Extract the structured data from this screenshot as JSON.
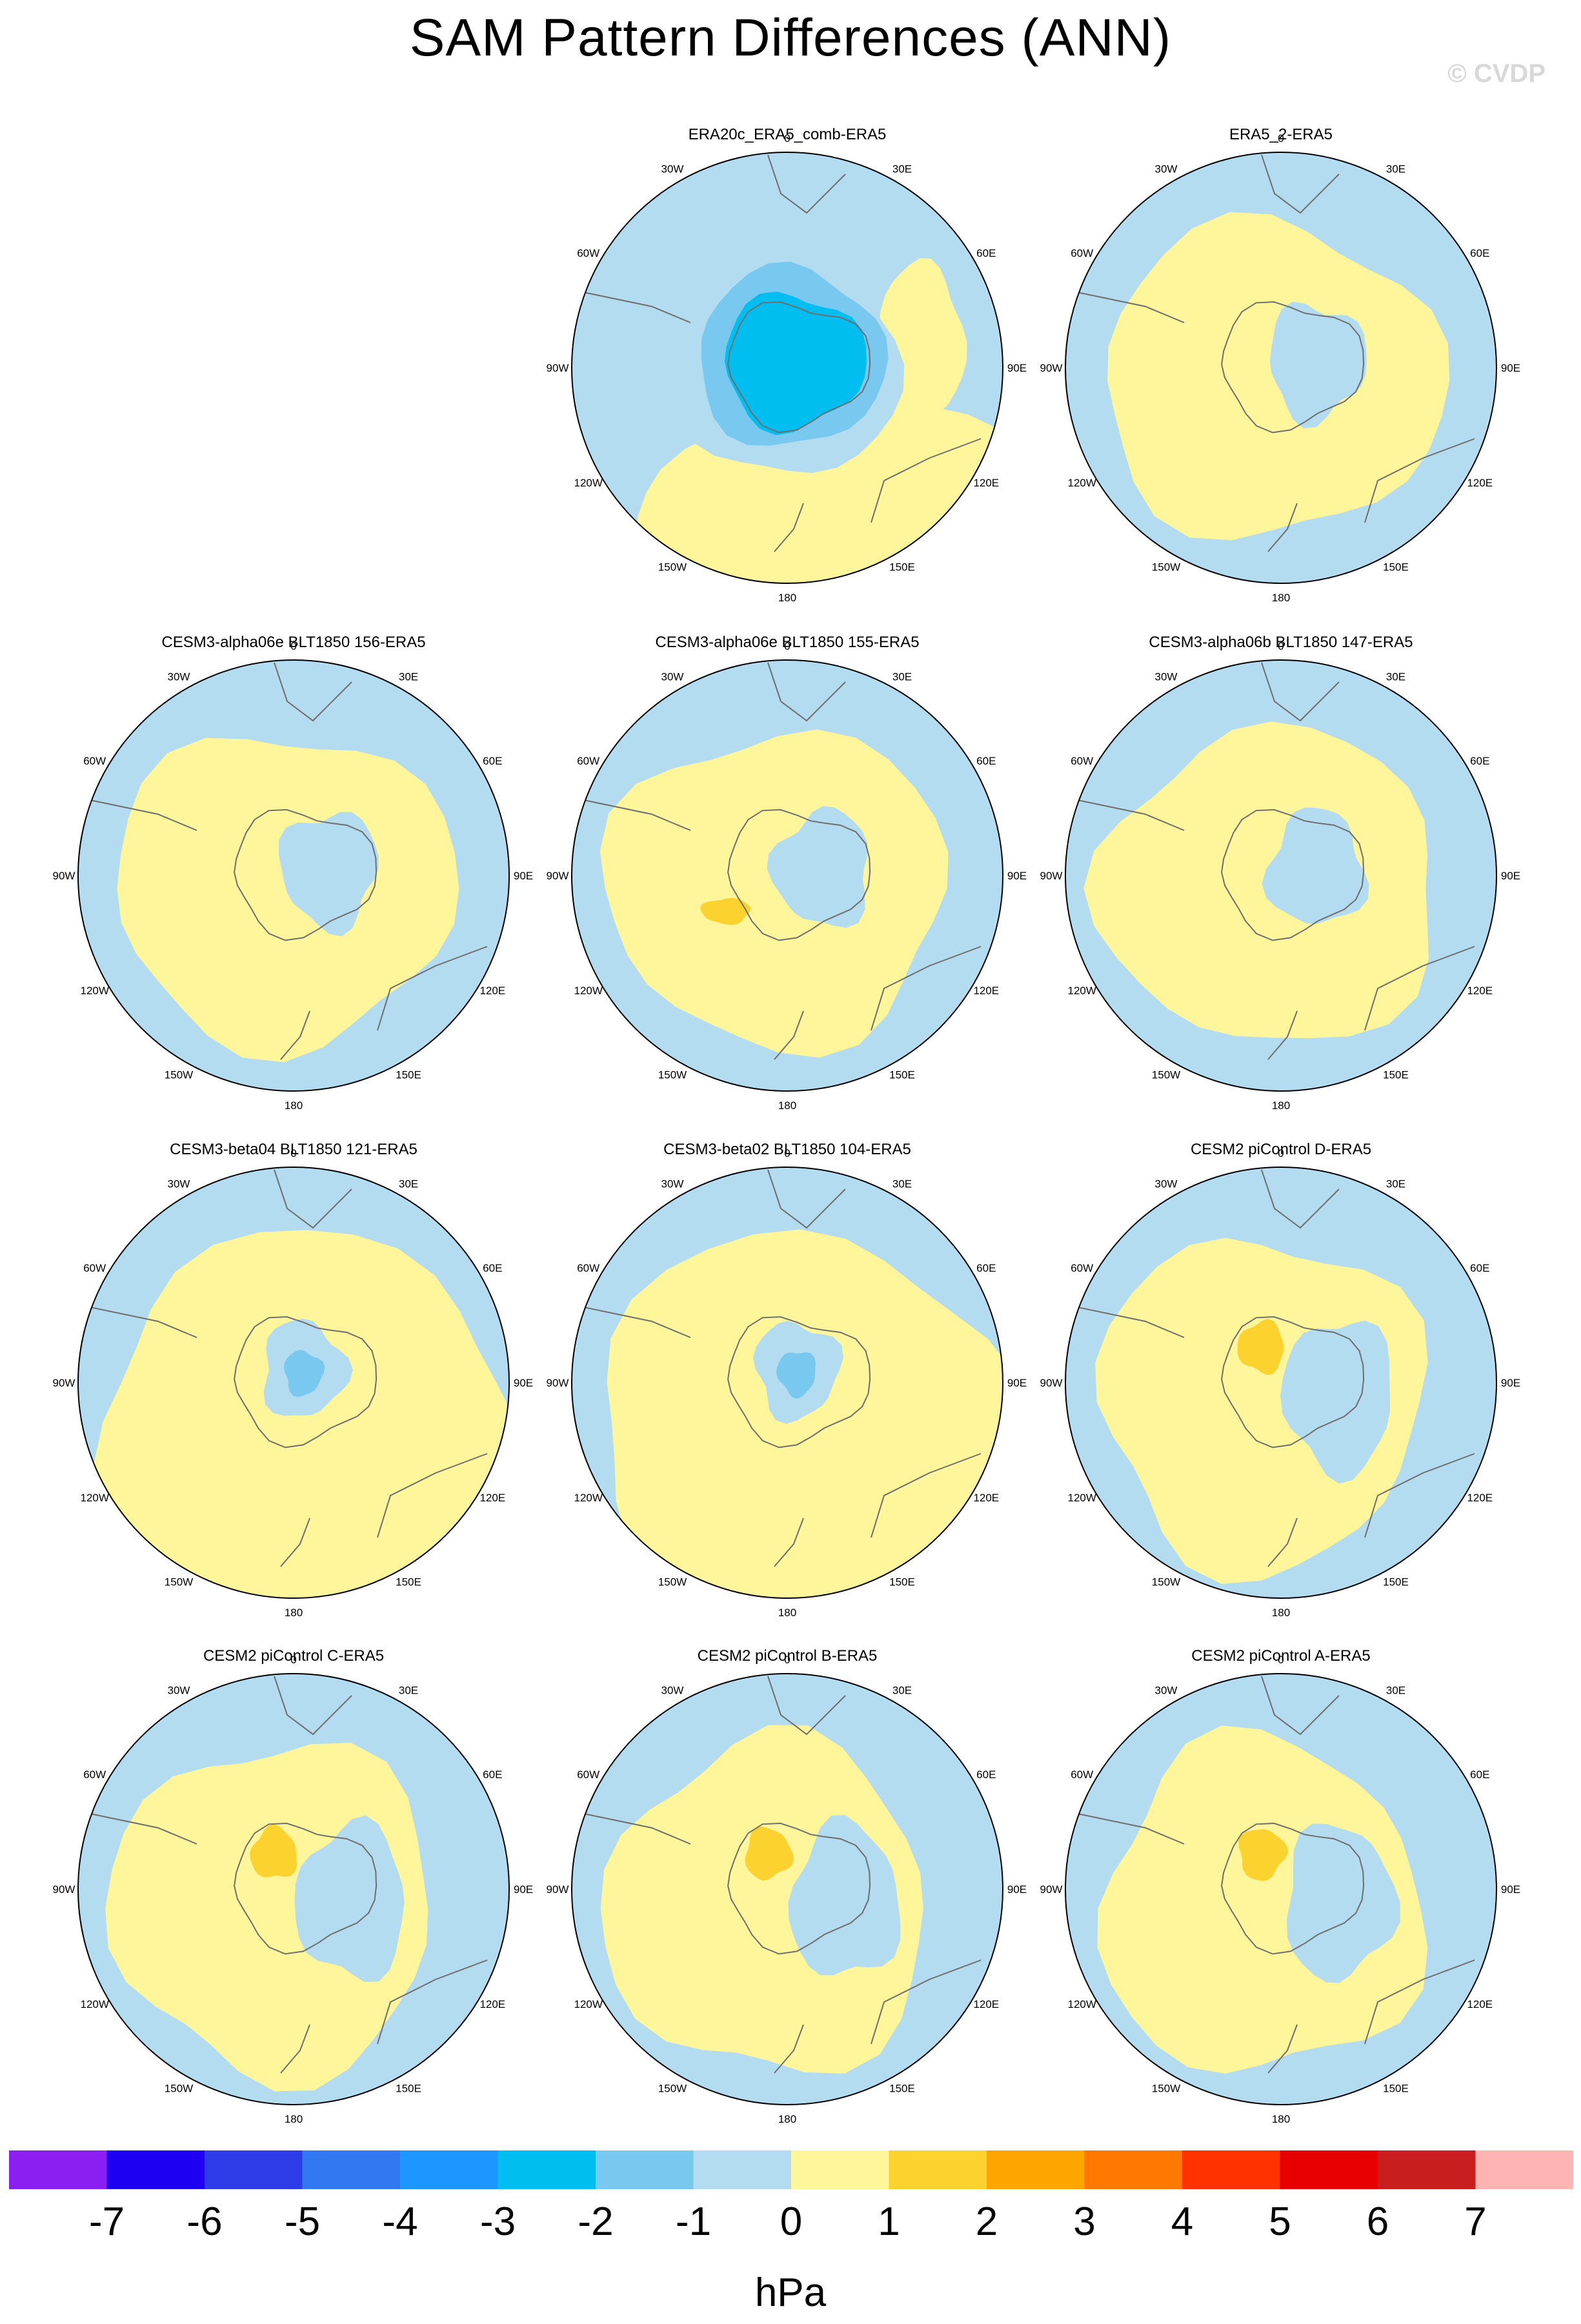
{
  "title": "SAM Pattern Differences (ANN)",
  "watermark": "© CVDP",
  "colors": {
    "ocean_neg1": "#b4dcf0",
    "neg2": "#78c8f0",
    "neg3": "#00bef0",
    "pos1": "#fff59b",
    "pos2": "#fcd22e",
    "coast": "#6e6e6e"
  },
  "lon_labels": [
    "0",
    "30E",
    "60E",
    "90E",
    "120E",
    "150E",
    "180",
    "150W",
    "120W",
    "90W",
    "60W",
    "30W"
  ],
  "panels": [
    {
      "title": "ERA20c_ERA5_comb-ERA5",
      "pattern": "deep-negative-pole"
    },
    {
      "title": "ERA5_2-ERA5",
      "pattern": "positive-ring"
    },
    {
      "title": "CESM3-alpha06e BLT1850 156-ERA5",
      "pattern": "positive-ring"
    },
    {
      "title": "CESM3-alpha06e BLT1850 155-ERA5",
      "pattern": "positive-ring-with-spot"
    },
    {
      "title": "CESM3-alpha06b BLT1850 147-ERA5",
      "pattern": "positive-ring"
    },
    {
      "title": "CESM3-beta04 BLT1850 121-ERA5",
      "pattern": "positive-broad"
    },
    {
      "title": "CESM3-beta02 BLT1850 104-ERA5",
      "pattern": "positive-broad"
    },
    {
      "title": "CESM2 piControl D-ERA5",
      "pattern": "positive-band-with-spot"
    },
    {
      "title": "CESM2 piControl C-ERA5",
      "pattern": "positive-band-with-spot"
    },
    {
      "title": "CESM2 piControl B-ERA5",
      "pattern": "positive-band-with-spot"
    },
    {
      "title": "CESM2 piControl A-ERA5",
      "pattern": "positive-band-with-spot"
    }
  ],
  "colorbar": {
    "colors": [
      "#8b1ef0",
      "#1e00f0",
      "#2d3ce6",
      "#3278f0",
      "#1e96ff",
      "#00bef0",
      "#78c8f0",
      "#b4dcf0",
      "#fff59b",
      "#fcd22e",
      "#ffa500",
      "#ff7800",
      "#ff3200",
      "#e60000",
      "#c81e1e",
      "#ffb4b4"
    ],
    "labels": [
      "-7",
      "-6",
      "-5",
      "-4",
      "-3",
      "-2",
      "-1",
      "0",
      "1",
      "2",
      "3",
      "4",
      "5",
      "6",
      "7"
    ],
    "units": "hPa"
  }
}
